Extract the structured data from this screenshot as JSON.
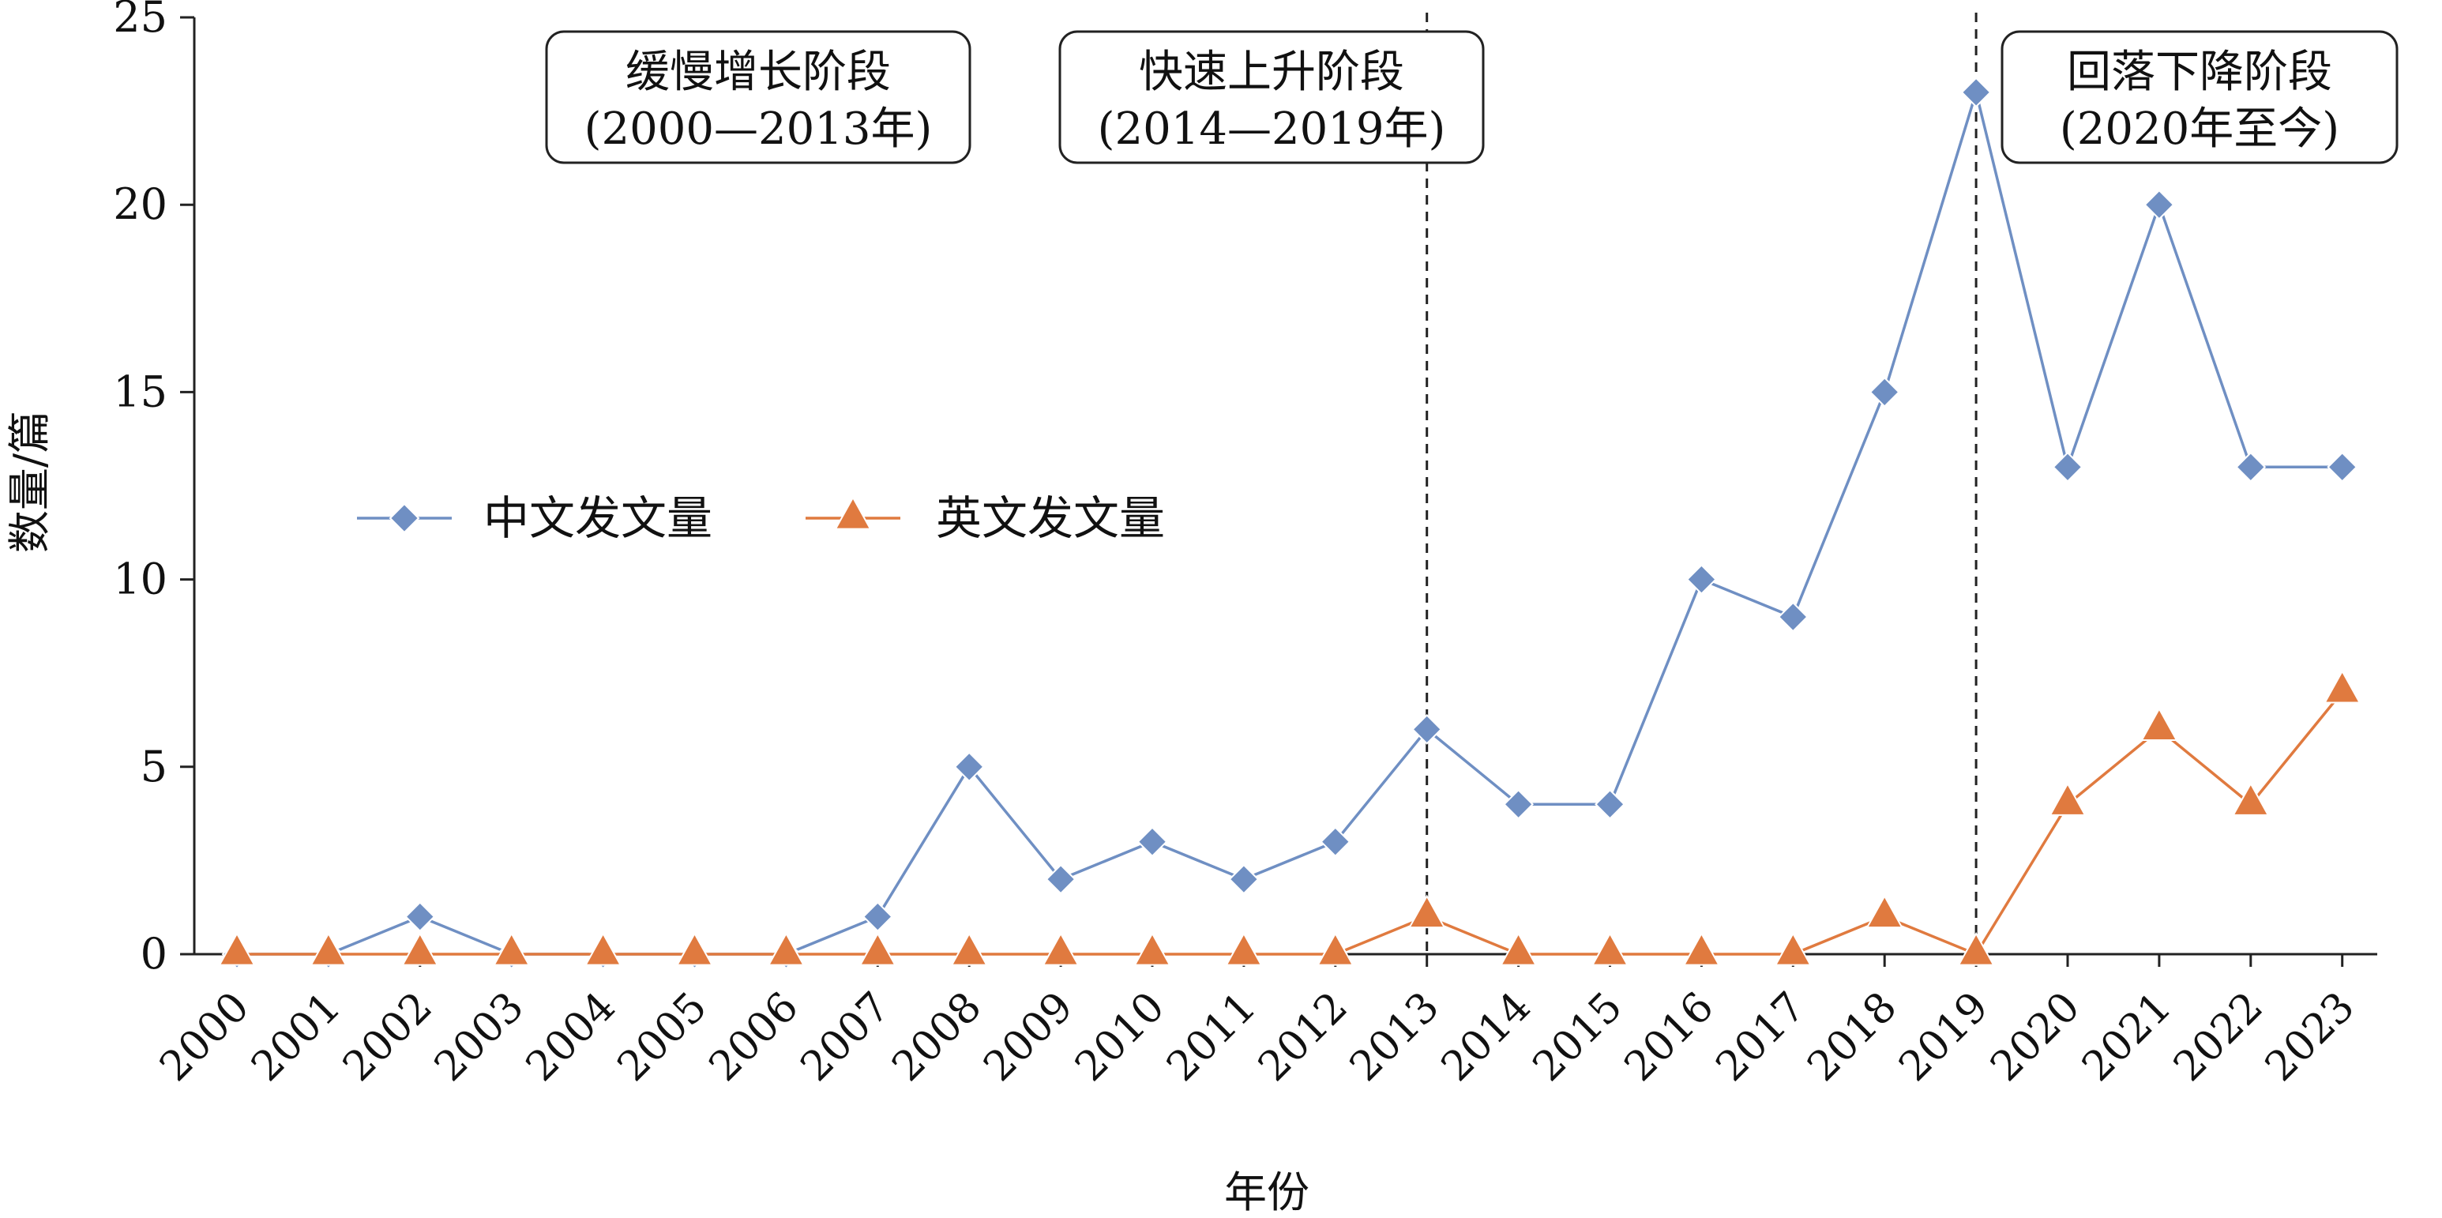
{
  "chart_data": {
    "type": "line",
    "xlabel": "年份",
    "ylabel": "数量/篇",
    "ylim": [
      0,
      25
    ],
    "y_ticks": [
      0,
      5,
      10,
      15,
      20,
      25
    ],
    "x": [
      "2000",
      "2001",
      "2002",
      "2003",
      "2004",
      "2005",
      "2006",
      "2007",
      "2008",
      "2009",
      "2010",
      "2011",
      "2012",
      "2013",
      "2014",
      "2015",
      "2016",
      "2017",
      "2018",
      "2019",
      "2020",
      "2021",
      "2022",
      "2023"
    ],
    "series": [
      {
        "name": "中文发文量",
        "color": "#6f8fc3",
        "marker": "diamond",
        "values": [
          0,
          0,
          1,
          0,
          0,
          0,
          0,
          1,
          5,
          2,
          3,
          2,
          3,
          6,
          4,
          4,
          10,
          9,
          15,
          23,
          13,
          20,
          13,
          13
        ]
      },
      {
        "name": "英文发文量",
        "color": "#e07a3f",
        "marker": "triangle",
        "values": [
          0,
          0,
          0,
          0,
          0,
          0,
          0,
          0,
          0,
          0,
          0,
          0,
          0,
          1,
          0,
          0,
          0,
          0,
          1,
          0,
          4,
          6,
          4,
          7
        ]
      }
    ],
    "grid": false,
    "legend_position": "middle-left",
    "phase_dividers": [
      "2013",
      "2019"
    ],
    "annotations": [
      {
        "line1": "缓慢增长阶段",
        "line2": "(2000—2013年)"
      },
      {
        "line1": "快速上升阶段",
        "line2": "(2014—2019年)"
      },
      {
        "line1": "回落下降阶段",
        "line2": "(2020年至今)"
      }
    ]
  }
}
